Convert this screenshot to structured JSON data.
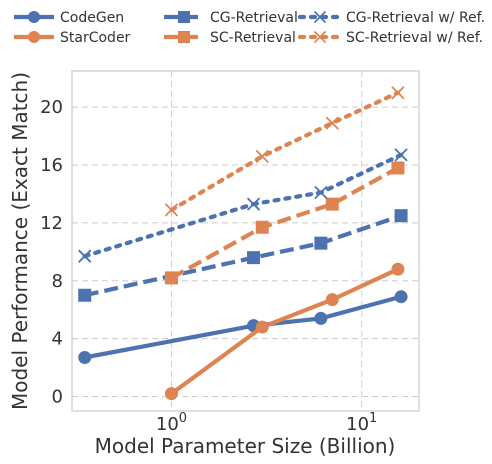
{
  "chart_data": {
    "type": "line",
    "xscale": "log",
    "xlabel": "Model Parameter Size (Billion)",
    "ylabel": "Model Performance (Exact Match)",
    "xlim": [
      0.3,
      20
    ],
    "ylim": [
      -1,
      22.5
    ],
    "xtick_values": [
      1,
      10
    ],
    "xtick_labels": [
      {
        "base": "10",
        "exp": "0"
      },
      {
        "base": "10",
        "exp": "1"
      }
    ],
    "yticks": [
      0,
      4,
      8,
      12,
      16,
      20
    ],
    "grid": true,
    "legend_position": "top",
    "series": [
      {
        "name": "CodeGen",
        "color": "#4c72b0",
        "linestyle": "solid",
        "marker": "circle",
        "x": [
          0.35,
          2.7,
          6.1,
          16.1
        ],
        "y": [
          2.7,
          4.9,
          5.4,
          6.9
        ]
      },
      {
        "name": "StarCoder",
        "color": "#dd8452",
        "linestyle": "solid",
        "marker": "circle",
        "x": [
          1,
          3,
          7,
          15.5
        ],
        "y": [
          0.2,
          4.8,
          6.7,
          8.8
        ]
      },
      {
        "name": "CG-Retrieval",
        "color": "#4c72b0",
        "linestyle": "dashed",
        "marker": "square",
        "x": [
          0.35,
          2.7,
          6.1,
          16.1
        ],
        "y": [
          7.0,
          9.6,
          10.6,
          12.5
        ]
      },
      {
        "name": "SC-Retrieval",
        "color": "#dd8452",
        "linestyle": "dashed",
        "marker": "square",
        "x": [
          1,
          3,
          7,
          15.5
        ],
        "y": [
          8.2,
          11.7,
          13.3,
          15.8
        ]
      },
      {
        "name": "CG-Retrieval w/ Ref.",
        "color": "#4c72b0",
        "linestyle": "dotted",
        "marker": "x",
        "x": [
          0.35,
          2.7,
          6.1,
          16.1
        ],
        "y": [
          9.7,
          13.3,
          14.1,
          16.7
        ]
      },
      {
        "name": "SC-Retrieval w/ Ref.",
        "color": "#dd8452",
        "linestyle": "dotted",
        "marker": "x",
        "x": [
          1,
          3,
          7,
          15.5
        ],
        "y": [
          12.9,
          16.6,
          18.9,
          21.0
        ]
      }
    ]
  }
}
